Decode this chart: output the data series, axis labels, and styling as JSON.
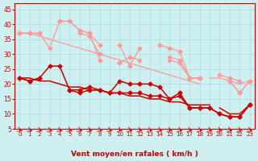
{
  "x": [
    0,
    1,
    2,
    3,
    4,
    5,
    6,
    7,
    8,
    9,
    10,
    11,
    12,
    13,
    14,
    15,
    16,
    17,
    18,
    19,
    20,
    21,
    22,
    23
  ],
  "line1": [
    37,
    37,
    37,
    32,
    41,
    41,
    38,
    37,
    28,
    null,
    33,
    26,
    32,
    null,
    33,
    32,
    31,
    22,
    22,
    null,
    23,
    22,
    21,
    null
  ],
  "line2": [
    37,
    37,
    37,
    null,
    41,
    41,
    38,
    37,
    33,
    null,
    27,
    29,
    null,
    null,
    null,
    29,
    28,
    22,
    22,
    null,
    null,
    21,
    17,
    21
  ],
  "line3": [
    null,
    null,
    null,
    null,
    null,
    null,
    37,
    36,
    30,
    null,
    null,
    29,
    28,
    null,
    null,
    28,
    27,
    22,
    22,
    null,
    null,
    21,
    17,
    21
  ],
  "line4": [
    22,
    21,
    22,
    26,
    26,
    18,
    18,
    19,
    18,
    17,
    21,
    20,
    20,
    20,
    19,
    15,
    17,
    12,
    12,
    12,
    10,
    9,
    9,
    13
  ],
  "line5": [
    22,
    21,
    22,
    null,
    null,
    18,
    17,
    18,
    18,
    17,
    17,
    17,
    17,
    16,
    16,
    15,
    16,
    12,
    12,
    12,
    10,
    9,
    9,
    13
  ],
  "line6_trend_pink": [
    37,
    37,
    36,
    35,
    34,
    33,
    32,
    31,
    30,
    29,
    28,
    27,
    26,
    25,
    24,
    23,
    22,
    21,
    20,
    null,
    null,
    null,
    null,
    null
  ],
  "line7_trend_pink2": [
    null,
    null,
    null,
    null,
    null,
    null,
    null,
    null,
    null,
    null,
    null,
    null,
    null,
    null,
    null,
    null,
    null,
    null,
    null,
    22,
    22,
    21,
    20,
    21
  ],
  "trend_red1": [
    22,
    22,
    21,
    21,
    20,
    19,
    19,
    18,
    18,
    17,
    17,
    16,
    16,
    15,
    15,
    14,
    14,
    13,
    13,
    13,
    null,
    null,
    null,
    null
  ],
  "trend_red2": [
    null,
    null,
    null,
    null,
    null,
    null,
    null,
    null,
    null,
    null,
    null,
    null,
    null,
    null,
    null,
    null,
    null,
    null,
    null,
    null,
    12,
    10,
    10,
    13
  ],
  "background_color": "#cff0f0",
  "grid_color": "#aadddd",
  "line_color_pink": "#ff9999",
  "line_color_red": "#cc0000",
  "xlabel": "Vent moyen/en rafales ( km/h )",
  "ylim": [
    5,
    47
  ],
  "xlim": [
    0,
    23
  ],
  "yticks": [
    5,
    10,
    15,
    20,
    25,
    30,
    35,
    40,
    45
  ],
  "xticks": [
    0,
    1,
    2,
    3,
    4,
    5,
    6,
    7,
    8,
    9,
    10,
    11,
    12,
    13,
    14,
    15,
    16,
    17,
    18,
    19,
    20,
    21,
    22,
    23
  ]
}
